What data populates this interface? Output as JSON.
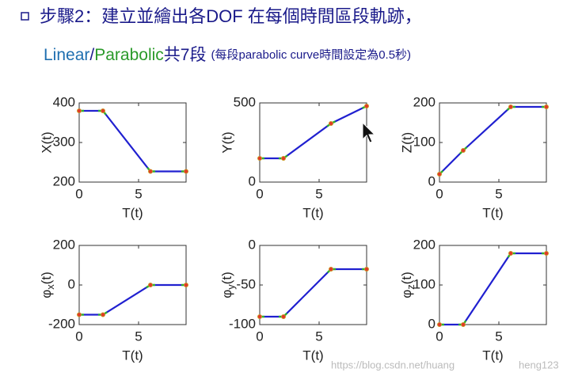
{
  "slide": {
    "title": "步驟2：建立並繪出各DOF 在每個時間區段軌跡，",
    "subtitle": {
      "linear": "Linear",
      "slash": "/",
      "parabolic": "Parabolic",
      "count": "共7段",
      "note": "(每段parabolic curve時間設定為0.5秒)"
    },
    "watermark": {
      "start": "https://blog.csdn.net/huang",
      "end": "heng123"
    }
  },
  "chart_data": [
    {
      "type": "line",
      "ylabel": "X(t)",
      "xlabel": "T(t)",
      "x": [
        0,
        2,
        6,
        9
      ],
      "values": [
        380,
        380,
        227,
        227
      ],
      "xlim": [
        0,
        9
      ],
      "xticks": [
        0,
        5
      ],
      "ylim": [
        200,
        400
      ],
      "yticks": [
        200,
        300,
        400
      ],
      "color": "#2020d0",
      "blend_color": "#30b030",
      "marker_color": "#e03a2a"
    },
    {
      "type": "line",
      "ylabel": "Y(t)",
      "xlabel": "T(t)",
      "x": [
        0,
        2,
        6,
        9
      ],
      "values": [
        150,
        150,
        370,
        480
      ],
      "xlim": [
        0,
        9
      ],
      "xticks": [
        0,
        5
      ],
      "ylim": [
        0,
        500
      ],
      "yticks": [
        0,
        500
      ],
      "color": "#2020d0",
      "blend_color": "#30b030",
      "marker_color": "#e03a2a"
    },
    {
      "type": "line",
      "ylabel": "Z(t)",
      "xlabel": "T(t)",
      "x": [
        0,
        2,
        6,
        9
      ],
      "values": [
        20,
        80,
        190,
        190
      ],
      "xlim": [
        0,
        9
      ],
      "xticks": [
        0,
        5
      ],
      "ylim": [
        0,
        200
      ],
      "yticks": [
        0,
        100,
        200
      ],
      "color": "#2020d0",
      "blend_color": "#30b030",
      "marker_color": "#e03a2a"
    },
    {
      "type": "line",
      "ylabel": {
        "symbol": "φ",
        "subscript": "x",
        "rest": "(t)"
      },
      "xlabel": "T(t)",
      "x": [
        0,
        2,
        6,
        9
      ],
      "values": [
        -150,
        -150,
        0,
        0
      ],
      "xlim": [
        0,
        9
      ],
      "xticks": [
        0,
        5
      ],
      "ylim": [
        -200,
        200
      ],
      "yticks": [
        -200,
        0,
        200
      ],
      "color": "#2020d0",
      "blend_color": "#30b030",
      "marker_color": "#e03a2a"
    },
    {
      "type": "line",
      "ylabel": {
        "symbol": "φ",
        "subscript": "y",
        "rest": "(t)"
      },
      "xlabel": "T(t)",
      "x": [
        0,
        2,
        6,
        9
      ],
      "values": [
        -90,
        -90,
        -30,
        -30
      ],
      "xlim": [
        0,
        9
      ],
      "xticks": [
        0,
        5
      ],
      "ylim": [
        -100,
        0
      ],
      "yticks": [
        -100,
        -50,
        0
      ],
      "color": "#2020d0",
      "blend_color": "#30b030",
      "marker_color": "#e03a2a"
    },
    {
      "type": "line",
      "ylabel": {
        "symbol": "φ",
        "subscript": "z",
        "rest": "(t)"
      },
      "xlabel": "T(t)",
      "x": [
        0,
        2,
        6,
        9
      ],
      "values": [
        0,
        0,
        180,
        180
      ],
      "xlim": [
        0,
        9
      ],
      "xticks": [
        0,
        5
      ],
      "ylim": [
        0,
        200
      ],
      "yticks": [
        0,
        100,
        200
      ],
      "color": "#2020d0",
      "blend_color": "#30b030",
      "marker_color": "#e03a2a"
    }
  ]
}
